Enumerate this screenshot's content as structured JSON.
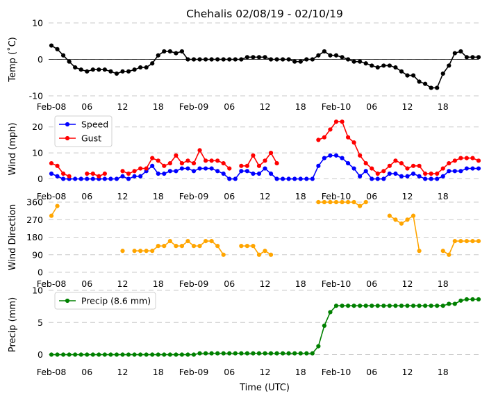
{
  "chart_data": {
    "type": "line",
    "title": "Chehalis 02/08/19 - 02/10/19",
    "xlabel": "Time (UTC)",
    "x_hours": [
      0,
      1,
      2,
      3,
      4,
      5,
      6,
      7,
      8,
      9,
      10,
      11,
      12,
      13,
      14,
      15,
      16,
      17,
      18,
      19,
      20,
      21,
      22,
      23,
      24,
      25,
      26,
      27,
      28,
      29,
      30,
      31,
      32,
      33,
      34,
      35,
      36,
      37,
      38,
      39,
      40,
      41,
      42,
      43,
      44,
      45,
      46,
      47,
      48,
      49,
      50,
      51,
      52,
      53,
      54,
      55,
      56,
      57,
      58,
      59,
      60,
      61,
      62,
      63,
      64,
      65,
      66,
      67,
      68,
      69,
      70,
      71,
      72
    ],
    "xticks": [
      {
        "hour": 0,
        "label": "Feb-08"
      },
      {
        "hour": 6,
        "label": "06"
      },
      {
        "hour": 12,
        "label": "12"
      },
      {
        "hour": 18,
        "label": "18"
      },
      {
        "hour": 24,
        "label": "Feb-09"
      },
      {
        "hour": 30,
        "label": "06"
      },
      {
        "hour": 36,
        "label": "12"
      },
      {
        "hour": 42,
        "label": "18"
      },
      {
        "hour": 48,
        "label": "Feb-10"
      },
      {
        "hour": 54,
        "label": "06"
      },
      {
        "hour": 60,
        "label": "12"
      },
      {
        "hour": 66,
        "label": "18"
      }
    ],
    "panels": [
      {
        "ylabel": "Temp (˚C)",
        "ylim": [
          -10,
          10
        ],
        "yticks": [
          -10,
          0,
          10
        ],
        "zero_line": true,
        "legend": null,
        "series": [
          {
            "name": "Temp",
            "color": "#000000",
            "values": [
              3.8,
              2.8,
              1.1,
              -0.6,
              -2.2,
              -2.8,
              -3.3,
              -2.8,
              -2.8,
              -2.8,
              -3.3,
              -3.9,
              -3.3,
              -3.3,
              -2.8,
              -2.2,
              -2.2,
              -1.1,
              1.1,
              2.2,
              2.2,
              1.7,
              2.2,
              0,
              0,
              0,
              0,
              0,
              0,
              0,
              0,
              0,
              0,
              0.6,
              0.6,
              0.6,
              0.6,
              0,
              0,
              0,
              0,
              -0.6,
              -0.6,
              0,
              0,
              1.1,
              2.2,
              1.1,
              1.1,
              0.6,
              0,
              -0.6,
              -0.6,
              -1.1,
              -1.7,
              -2.2,
              -1.7,
              -1.7,
              -2.2,
              -3.3,
              -4.4,
              -4.4,
              -6.1,
              -6.7,
              -7.8,
              -7.8,
              -3.9,
              -1.7,
              1.7,
              2.2,
              0.6,
              0.6,
              0.6
            ]
          }
        ]
      },
      {
        "ylabel": "Wind (mph)",
        "ylim": [
          -2,
          25
        ],
        "yticks": [
          0,
          10,
          20
        ],
        "zero_line": false,
        "legend": "top-left",
        "series": [
          {
            "name": "Speed",
            "color": "#0000ff",
            "values": [
              2,
              1,
              0,
              0,
              0,
              0,
              0,
              0,
              0,
              0,
              0,
              0,
              1,
              0,
              1,
              1,
              3,
              5,
              2,
              2,
              3,
              3,
              4,
              4,
              3,
              4,
              4,
              4,
              3,
              2,
              0,
              0,
              3,
              3,
              2,
              2,
              4,
              2,
              0,
              0,
              0,
              0,
              0,
              0,
              0,
              5,
              8,
              9,
              9,
              8,
              6,
              4,
              1,
              3,
              0,
              0,
              0,
              2,
              2,
              1,
              1,
              2,
              1,
              0,
              0,
              0,
              1,
              3,
              3,
              3,
              4,
              4,
              4
            ]
          },
          {
            "name": "Gust",
            "color": "#ff0000",
            "values": [
              6,
              5,
              2,
              1,
              null,
              null,
              2,
              2,
              1,
              2,
              null,
              null,
              3,
              2,
              3,
              4,
              4,
              8,
              7,
              5,
              6,
              9,
              6,
              7,
              6,
              11,
              7,
              7,
              7,
              6,
              4,
              null,
              5,
              5,
              9,
              5,
              7,
              10,
              6,
              null,
              null,
              null,
              null,
              null,
              null,
              15,
              16,
              19,
              22,
              22,
              16,
              14,
              9,
              6,
              4,
              2,
              3,
              5,
              7,
              6,
              4,
              5,
              5,
              2,
              2,
              2,
              4,
              6,
              7,
              8,
              8,
              8,
              7
            ]
          }
        ]
      },
      {
        "ylabel": "Wind Direction",
        "ylim": [
          0,
          360
        ],
        "yticks": [
          0,
          90,
          180,
          270,
          360
        ],
        "zero_line": false,
        "legend": null,
        "series": [
          {
            "name": "Direction",
            "color": "#ffa500",
            "values": [
              290,
              340,
              null,
              null,
              null,
              null,
              null,
              null,
              null,
              null,
              null,
              null,
              110,
              null,
              110,
              110,
              110,
              110,
              135,
              135,
              160,
              135,
              135,
              160,
              135,
              135,
              160,
              160,
              135,
              90,
              null,
              null,
              135,
              135,
              135,
              90,
              110,
              90,
              null,
              null,
              null,
              null,
              null,
              null,
              null,
              360,
              360,
              360,
              360,
              360,
              360,
              360,
              340,
              360,
              null,
              null,
              null,
              290,
              270,
              250,
              270,
              290,
              110,
              null,
              null,
              null,
              110,
              90,
              160,
              160,
              160,
              160,
              160
            ]
          }
        ]
      },
      {
        "ylabel": "Precip (mm)",
        "ylim": [
          -0.7,
          10
        ],
        "yticks": [
          0,
          5,
          10
        ],
        "zero_line": false,
        "legend": "top-left",
        "series": [
          {
            "name": "Precip (8.6 mm)",
            "color": "#008000",
            "values": [
              0,
              0,
              0,
              0,
              0,
              0,
              0,
              0,
              0,
              0,
              0,
              0,
              0,
              0,
              0,
              0,
              0,
              0,
              0,
              0,
              0,
              0,
              0,
              0,
              0,
              0.2,
              0.2,
              0.2,
              0.2,
              0.2,
              0.2,
              0.2,
              0.2,
              0.2,
              0.2,
              0.2,
              0.2,
              0.2,
              0.2,
              0.2,
              0.2,
              0.2,
              0.2,
              0.2,
              0.2,
              1.3,
              4.5,
              6.6,
              7.6,
              7.6,
              7.6,
              7.6,
              7.6,
              7.6,
              7.6,
              7.6,
              7.6,
              7.6,
              7.6,
              7.6,
              7.6,
              7.6,
              7.6,
              7.6,
              7.6,
              7.6,
              7.6,
              7.9,
              7.9,
              8.4,
              8.6,
              8.6,
              8.6
            ]
          }
        ]
      }
    ]
  }
}
